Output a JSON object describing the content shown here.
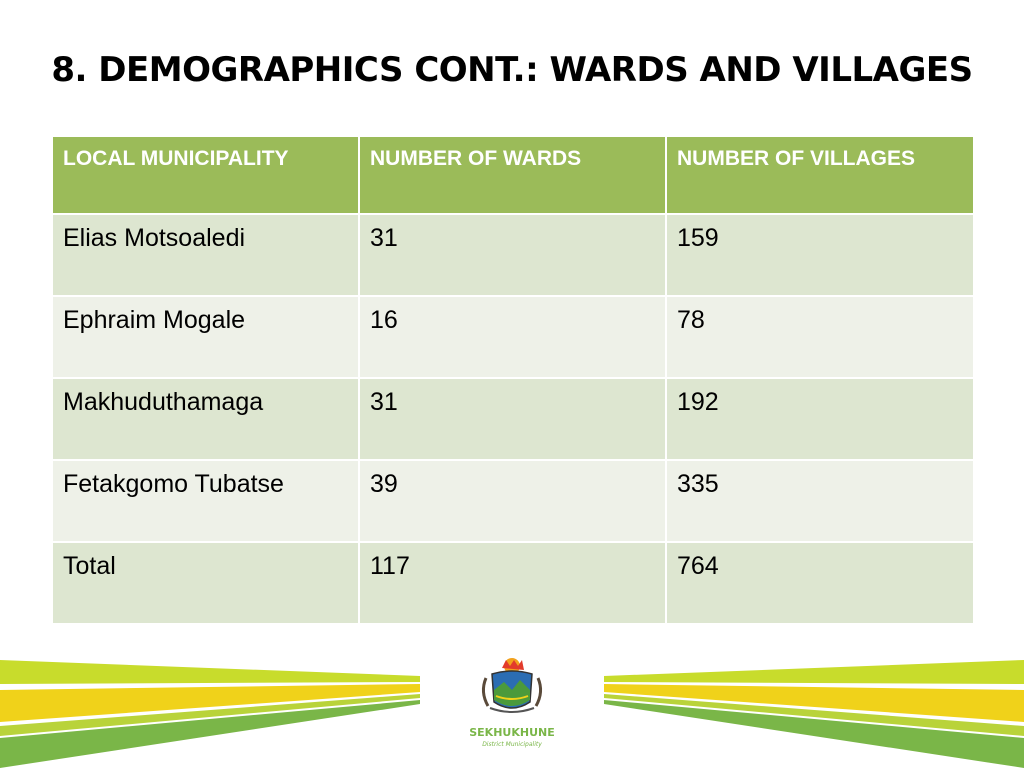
{
  "slide": {
    "title": "8. DEMOGRAPHICS CONT.: WARDS AND VILLAGES"
  },
  "table": {
    "headers": [
      "LOCAL MUNICIPALITY",
      "NUMBER OF WARDS",
      "NUMBER OF VILLAGES"
    ],
    "rows": [
      [
        "Elias Motsoaledi",
        "31",
        "159"
      ],
      [
        "Ephraim Mogale",
        "16",
        "78"
      ],
      [
        "Makhuduthamaga",
        "31",
        "192"
      ],
      [
        "Fetakgomo Tubatse",
        "39",
        "335"
      ],
      [
        "Total",
        "117",
        "764"
      ]
    ]
  },
  "logo": {
    "name": "SEKHUKHUNE",
    "subtitle": "District Municipality"
  },
  "colors": {
    "header_green": "#9bbb59",
    "row_dark": "#dde6d0",
    "row_light": "#eef1e8",
    "stripe_green": "#7ab648",
    "stripe_yellow": "#f0d21a",
    "stripe_lime": "#c8dc2c"
  }
}
